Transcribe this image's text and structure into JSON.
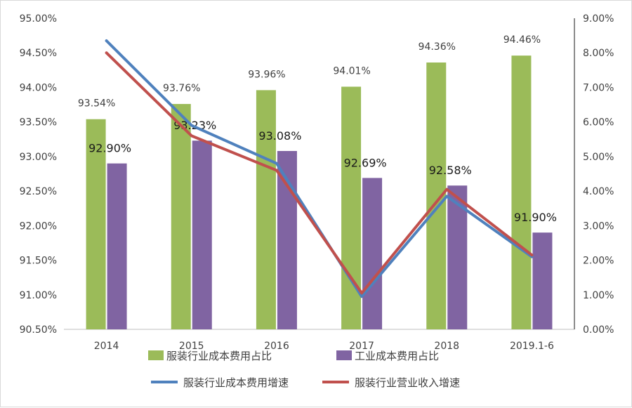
{
  "chart_data": {
    "type": "bar",
    "categories": [
      "2014",
      "2015",
      "2016",
      "2017",
      "2018",
      "2019.1-6"
    ],
    "left_axis": {
      "ylim": [
        90.5,
        95.0
      ],
      "ticks": [
        "90.50%",
        "91.00%",
        "91.50%",
        "92.00%",
        "92.50%",
        "93.00%",
        "93.50%",
        "94.00%",
        "94.50%",
        "95.00%"
      ]
    },
    "right_axis": {
      "ylim": [
        0,
        9
      ],
      "ticks": [
        "0.00%",
        "1.00%",
        "2.00%",
        "3.00%",
        "4.00%",
        "5.00%",
        "6.00%",
        "7.00%",
        "8.00%",
        "9.00%"
      ]
    },
    "bar_series": [
      {
        "name": "服装行业成本费用占比",
        "color": "#9bbb59",
        "axis": "left",
        "values": [
          93.54,
          93.76,
          93.96,
          94.01,
          94.36,
          94.46
        ],
        "labels": [
          "93.54%",
          "93.76%",
          "93.96%",
          "94.01%",
          "94.36%",
          "94.46%"
        ]
      },
      {
        "name": "工业成本费用占比",
        "color": "#8064a2",
        "axis": "left",
        "values": [
          92.9,
          93.23,
          93.08,
          92.69,
          92.58,
          91.9
        ],
        "labels": [
          "92.90%",
          "93.23%",
          "93.08%",
          "92.69%",
          "92.58%",
          "91.90%"
        ]
      }
    ],
    "line_series": [
      {
        "name": "服装行业成本费用增速",
        "color": "#4f81bd",
        "axis": "right",
        "values": [
          8.35,
          5.9,
          4.8,
          0.95,
          3.85,
          2.1
        ]
      },
      {
        "name": "服装行业营业收入增速",
        "color": "#c0504d",
        "axis": "right",
        "values": [
          8.0,
          5.6,
          4.6,
          1.05,
          4.05,
          2.15
        ]
      }
    ],
    "legend": {
      "bar_entries": [
        "服装行业成本费用占比",
        "工业成本费用占比"
      ],
      "line_entries": [
        "服装行业成本费用增速",
        "服装行业营业收入增速"
      ],
      "placement": "bottom"
    },
    "title": "",
    "xlabel": "",
    "ylabel": ""
  }
}
